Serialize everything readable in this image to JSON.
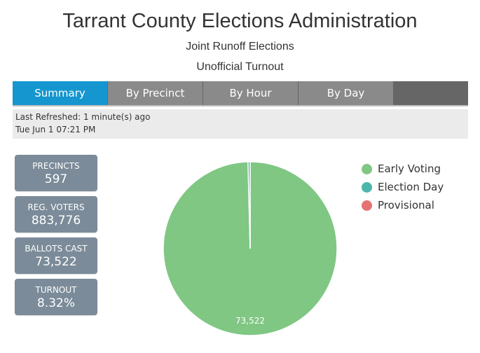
{
  "header": {
    "title": "Tarrant County Elections Administration",
    "subtitle": "Joint Runoff Elections",
    "subtitle2": "Unofficial Turnout"
  },
  "tabs": [
    {
      "label": "Summary",
      "active": true
    },
    {
      "label": "By Precinct",
      "active": false
    },
    {
      "label": "By Hour",
      "active": false
    },
    {
      "label": "By Day",
      "active": false
    }
  ],
  "refresh": {
    "line1": "Last Refreshed: 1 minute(s) ago",
    "line2": "Tue Jun 1 07:21 PM"
  },
  "stats": [
    {
      "label": "PRECINCTS",
      "value": "597"
    },
    {
      "label": "REG. VOTERS",
      "value": "883,776"
    },
    {
      "label": "BALLOTS CAST",
      "value": "73,522"
    },
    {
      "label": "TURNOUT",
      "value": "8.32%"
    }
  ],
  "colors": {
    "accent_tab": "#1596cf",
    "stat_box": "#7b8b99"
  },
  "chart_data": {
    "type": "pie",
    "slices": [
      {
        "name": "Early Voting",
        "value": 73230,
        "color": "#7fc782"
      },
      {
        "name": "Election Day",
        "value": 292,
        "color": "#4db6ac"
      },
      {
        "name": "Provisional",
        "value": 0,
        "color": "#e57373"
      }
    ],
    "data_label": "73,522",
    "legend_position": "right"
  }
}
